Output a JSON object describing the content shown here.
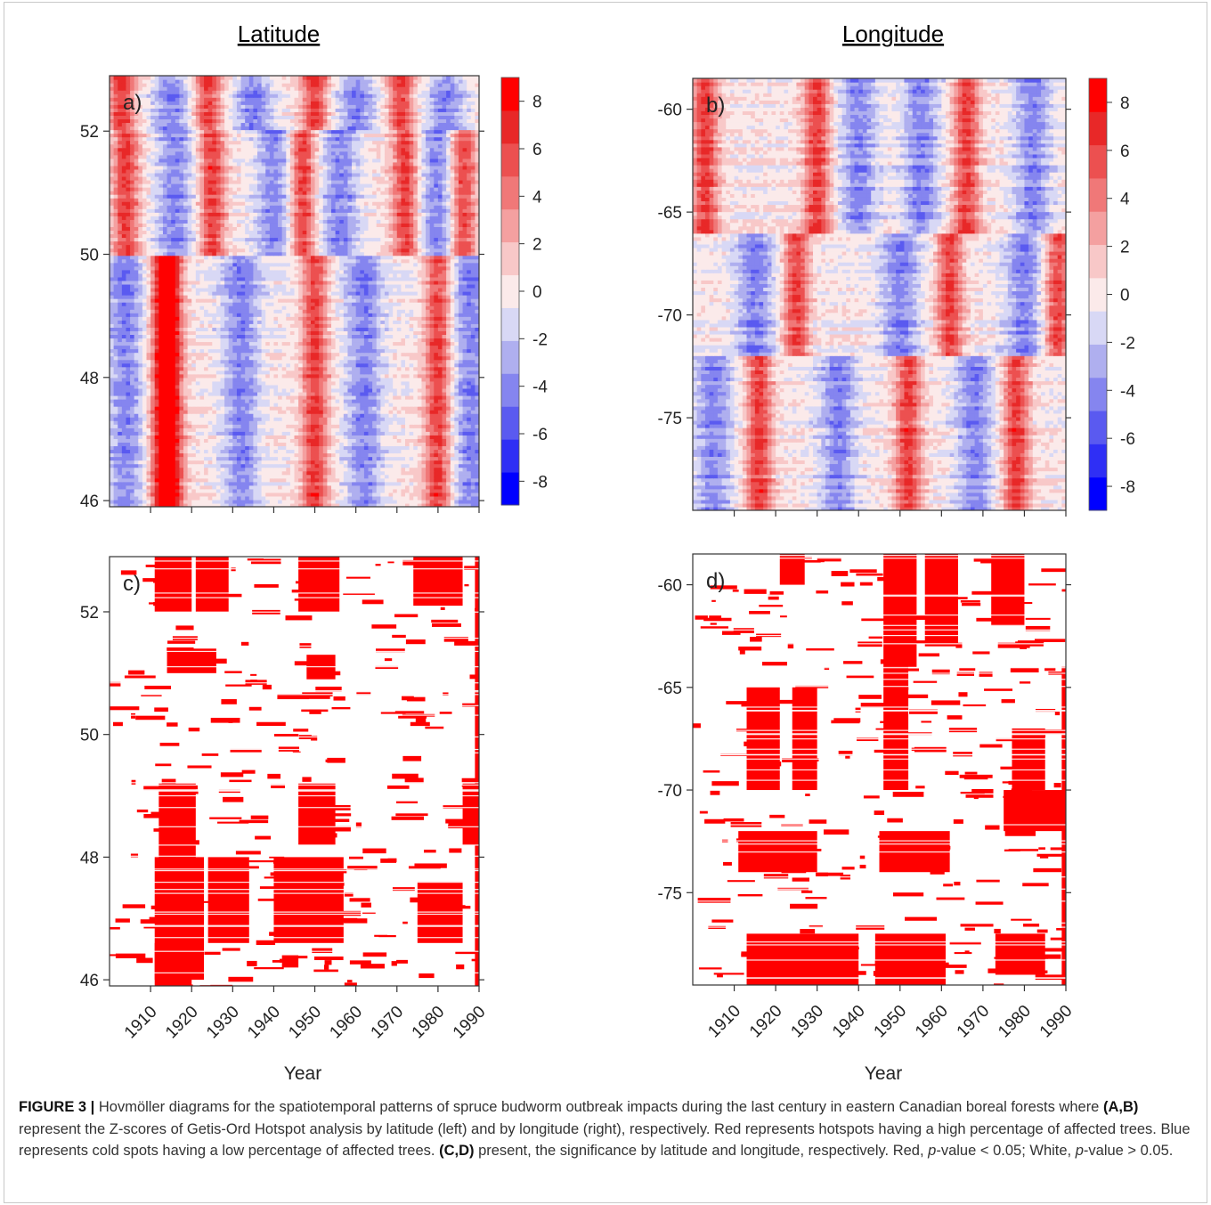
{
  "titles": {
    "left": "Latitude",
    "right": "Longitude"
  },
  "chart_data": [
    {
      "id": "a",
      "type": "heatmap",
      "panel_label": "a)",
      "title": "Latitude",
      "quantity": "Z-score (Getis-Ord Hotspot)",
      "x": {
        "label": "",
        "range": [
          1900,
          1990
        ],
        "ticks": [
          1910,
          1920,
          1930,
          1940,
          1950,
          1960,
          1970,
          1980,
          1990
        ]
      },
      "y": {
        "label": "",
        "range": [
          45.9,
          52.9
        ],
        "ticks": [
          46,
          48,
          50,
          52
        ]
      },
      "colorbar": {
        "range": [
          -9,
          9
        ],
        "ticks": [
          -8,
          -6,
          -4,
          -2,
          0,
          2,
          4,
          6,
          8
        ],
        "colors": [
          "#0000ff",
          "#2f2ff5",
          "#5a5af0",
          "#8585ef",
          "#afafef",
          "#d8d8f5",
          "#fbeaea",
          "#f8c8c8",
          "#f4a0a0",
          "#f07878",
          "#ec5050",
          "#e82828",
          "#ff0000"
        ]
      },
      "pattern": [
        {
          "y": [
            52.0,
            52.9
          ],
          "hot": [
            1903,
            1924,
            1950,
            1971
          ],
          "cold": [
            1915,
            1935,
            1960,
            1982
          ]
        },
        {
          "y": [
            50.0,
            52.0
          ],
          "hot": [
            1904,
            1925,
            1947,
            1972,
            1986
          ],
          "cold": [
            1916,
            1940,
            1956,
            1980
          ]
        },
        {
          "y": [
            45.9,
            50.0
          ],
          "hot": [
            1913,
            1915,
            1950,
            1980
          ],
          "cold": [
            1904,
            1932,
            1962,
            1988
          ]
        }
      ]
    },
    {
      "id": "b",
      "type": "heatmap",
      "panel_label": "b)",
      "title": "Longitude",
      "quantity": "Z-score (Getis-Ord Hotspot)",
      "x": {
        "label": "",
        "range": [
          1900,
          1990
        ],
        "ticks": [
          1910,
          1920,
          1930,
          1940,
          1950,
          1960,
          1970,
          1980,
          1990
        ]
      },
      "y": {
        "label": "",
        "range": [
          -79.5,
          -58.5
        ],
        "ticks": [
          -60,
          -65,
          -70,
          -75
        ]
      },
      "colorbar": {
        "range": [
          -9,
          9
        ],
        "ticks": [
          -8,
          -6,
          -4,
          -2,
          0,
          2,
          4,
          6,
          8
        ],
        "colors": [
          "#0000ff",
          "#2f2ff5",
          "#5a5af0",
          "#8585ef",
          "#afafef",
          "#d8d8f5",
          "#fbeaea",
          "#f8c8c8",
          "#f4a0a0",
          "#f07878",
          "#ec5050",
          "#e82828",
          "#ff0000"
        ]
      },
      "pattern": [
        {
          "y": [
            -66,
            -58.5
          ],
          "hot": [
            1903,
            1930,
            1966
          ],
          "cold": [
            1940,
            1955,
            1982
          ]
        },
        {
          "y": [
            -72,
            -66
          ],
          "hot": [
            1925,
            1962,
            1988
          ],
          "cold": [
            1915,
            1950,
            1980
          ]
        },
        {
          "y": [
            -79.5,
            -72
          ],
          "hot": [
            1916,
            1952,
            1978
          ],
          "cold": [
            1905,
            1935,
            1968
          ]
        }
      ]
    },
    {
      "id": "c",
      "type": "heatmap",
      "panel_label": "c)",
      "quantity": "significance (red p<0.05, white p>0.05)",
      "x": {
        "label": "Year",
        "range": [
          1900,
          1990
        ],
        "ticks": [
          1910,
          1920,
          1930,
          1940,
          1950,
          1960,
          1970,
          1980,
          1990
        ]
      },
      "y": {
        "label": "",
        "range": [
          45.9,
          52.9
        ],
        "ticks": [
          46,
          48,
          50,
          52
        ]
      },
      "significant_blocks": [
        [
          1911,
          1920,
          52.0,
          52.9
        ],
        [
          1921,
          1929,
          52.0,
          52.9
        ],
        [
          1946,
          1956,
          52.0,
          52.9
        ],
        [
          1974,
          1986,
          52.1,
          52.9
        ],
        [
          1914,
          1926,
          51.0,
          51.4
        ],
        [
          1948,
          1955,
          50.9,
          51.3
        ],
        [
          1912,
          1921,
          48.0,
          49.2
        ],
        [
          1946,
          1955,
          48.2,
          49.2
        ],
        [
          1986,
          1990,
          48.2,
          49.2
        ],
        [
          1911,
          1923,
          46.0,
          48.0
        ],
        [
          1924,
          1934,
          46.6,
          48.0
        ],
        [
          1940,
          1957,
          46.6,
          48.0
        ],
        [
          1975,
          1986,
          46.6,
          47.6
        ],
        [
          1911,
          1920,
          45.9,
          46.6
        ],
        [
          1942,
          1946,
          46.2,
          46.4
        ],
        [
          1989,
          1990,
          45.9,
          52.9
        ]
      ]
    },
    {
      "id": "d",
      "type": "heatmap",
      "panel_label": "d)",
      "quantity": "significance (red p<0.05, white p>0.05)",
      "x": {
        "label": "Year",
        "range": [
          1900,
          1990
        ],
        "ticks": [
          1910,
          1920,
          1930,
          1940,
          1950,
          1960,
          1970,
          1980,
          1990
        ]
      },
      "y": {
        "label": "",
        "range": [
          -79.5,
          -58.5
        ],
        "ticks": [
          -60,
          -65,
          -70,
          -75
        ]
      },
      "significant_blocks": [
        [
          1921,
          1927,
          -60,
          -58.5
        ],
        [
          1946,
          1954,
          -64,
          -58.5
        ],
        [
          1956,
          1964,
          -63,
          -58.5
        ],
        [
          1972,
          1980,
          -62,
          -58.5
        ],
        [
          1913,
          1921,
          -70,
          -65
        ],
        [
          1924,
          1930,
          -70,
          -65
        ],
        [
          1946,
          1952,
          -70,
          -64
        ],
        [
          1977,
          1985,
          -70,
          -67
        ],
        [
          1911,
          1930,
          -74,
          -72
        ],
        [
          1945,
          1962,
          -74,
          -72
        ],
        [
          1975,
          1990,
          -72,
          -70
        ],
        [
          1913,
          1940,
          -79.5,
          -77
        ],
        [
          1944,
          1961,
          -79.5,
          -77
        ],
        [
          1973,
          1985,
          -79,
          -77
        ],
        [
          1989,
          1990,
          -79.5,
          -64
        ]
      ]
    }
  ],
  "xlabel": "Year",
  "caption": {
    "fig": "FIGURE 3 |",
    "p1": " Hovmöller diagrams for the spatiotemporal patterns of spruce budworm outbreak impacts during the last century in eastern Canadian boreal forests where ",
    "ab": "(A,B)",
    "p2": " represent the Z-scores of Getis-Ord Hotspot analysis by latitude (left) and by longitude (right), respectively. Red represents hotspots having a high percentage of affected trees. Blue represents cold spots having a low percentage of affected trees. ",
    "cd": "(C,D)",
    "p3": " present, the significance by latitude and longitude, respectively. Red, ",
    "pvar1": "p",
    "p4": "-value < 0.05; White, ",
    "pvar2": "p",
    "p5": "-value > 0.05."
  }
}
